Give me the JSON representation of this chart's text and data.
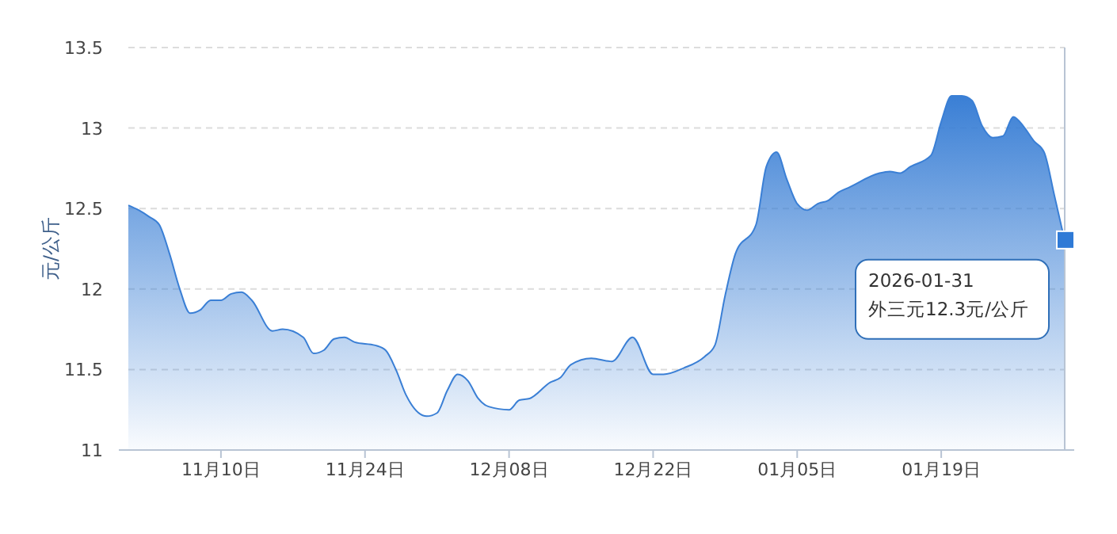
{
  "chart_data": {
    "type": "area",
    "ylabel": "元/公斤",
    "color": "#3a7fd5",
    "x": [
      "2025-11-01",
      "2025-11-02",
      "2025-11-03",
      "2025-11-04",
      "2025-11-05",
      "2025-11-06",
      "2025-11-07",
      "2025-11-08",
      "2025-11-09",
      "2025-11-10",
      "2025-11-11",
      "2025-11-12",
      "2025-11-13",
      "2025-11-15",
      "2025-11-16",
      "2025-11-18",
      "2025-11-19",
      "2025-11-20",
      "2025-11-21",
      "2025-11-22",
      "2025-11-23",
      "2025-11-25",
      "2025-11-26",
      "2025-11-27",
      "2025-11-28",
      "2025-11-30",
      "2025-12-01",
      "2025-12-02",
      "2025-12-03",
      "2025-12-04",
      "2025-12-05",
      "2025-12-06",
      "2025-12-08",
      "2025-12-09",
      "2025-12-10",
      "2025-12-12",
      "2025-12-13",
      "2025-12-14",
      "2025-12-16",
      "2025-12-18",
      "2025-12-20",
      "2025-12-22",
      "2025-12-23",
      "2025-12-25",
      "2025-12-27",
      "2025-12-28",
      "2025-12-29",
      "2025-12-30",
      "2026-01-01",
      "2026-01-02",
      "2026-01-03",
      "2026-01-04",
      "2026-01-05",
      "2026-01-06",
      "2026-01-07",
      "2026-01-08",
      "2026-01-09",
      "2026-01-10",
      "2026-01-13",
      "2026-01-14",
      "2026-01-15",
      "2026-01-16",
      "2026-01-18",
      "2026-01-19",
      "2026-01-20",
      "2026-01-21",
      "2026-01-22",
      "2026-01-23",
      "2026-01-24",
      "2026-01-25",
      "2026-01-26",
      "2026-01-27",
      "2026-01-28",
      "2026-01-29",
      "2026-01-30",
      "2026-01-31"
    ],
    "values": [
      12.52,
      12.49,
      12.45,
      12.4,
      12.22,
      12.0,
      11.85,
      11.87,
      11.93,
      11.93,
      11.97,
      11.98,
      11.93,
      11.74,
      11.75,
      11.7,
      11.6,
      11.62,
      11.69,
      11.7,
      11.67,
      11.65,
      11.62,
      11.5,
      11.34,
      11.21,
      11.23,
      11.37,
      11.47,
      11.43,
      11.32,
      11.27,
      11.25,
      11.31,
      11.32,
      11.42,
      11.45,
      11.53,
      11.57,
      11.55,
      11.7,
      11.47,
      11.47,
      11.51,
      11.58,
      11.65,
      11.96,
      12.22,
      12.4,
      12.76,
      12.85,
      12.68,
      12.53,
      12.49,
      12.53,
      12.55,
      12.6,
      12.63,
      12.72,
      12.73,
      12.72,
      12.76,
      12.83,
      13.04,
      13.2,
      13.2,
      13.17,
      13.01,
      12.94,
      12.95,
      13.07,
      13.01,
      12.92,
      12.85,
      12.58,
      12.3
    ],
    "xlim": [
      "2025-11-01",
      "2026-01-31"
    ],
    "xticks": [
      {
        "value": "2025-11-10",
        "label": "11月10日"
      },
      {
        "value": "2025-11-24",
        "label": "11月24日"
      },
      {
        "value": "2025-12-08",
        "label": "12月08日"
      },
      {
        "value": "2025-12-22",
        "label": "12月22日"
      },
      {
        "value": "2026-01-05",
        "label": "01月05日"
      },
      {
        "value": "2026-01-19",
        "label": "01月19日"
      }
    ],
    "ylim": [
      11,
      13.5
    ],
    "yticks": [
      11,
      11.5,
      12,
      12.5,
      13,
      13.5
    ],
    "grid": "y",
    "annotations": [
      {
        "text": "2026-01-31\n外三元12.3元/公斤",
        "x": "2026-01-31",
        "y": 12.3
      }
    ]
  }
}
